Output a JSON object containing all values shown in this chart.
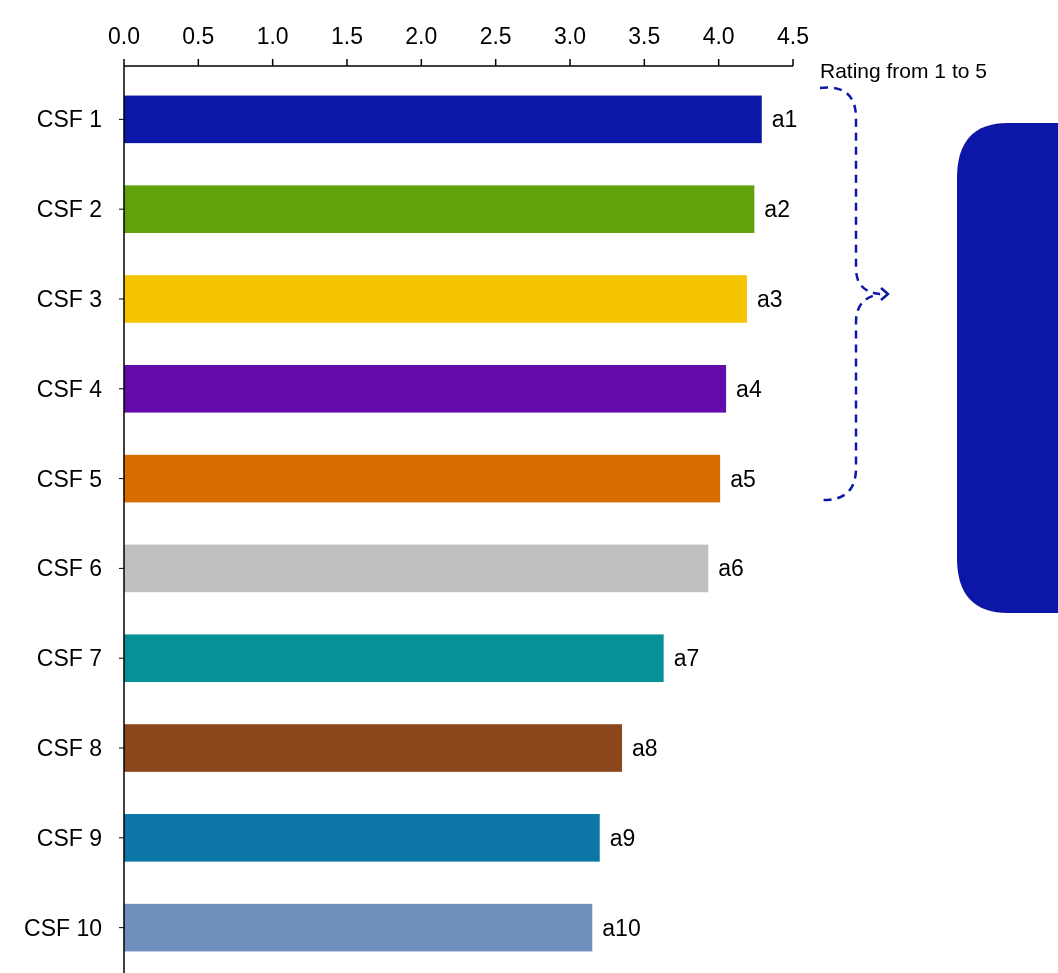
{
  "chart_data": {
    "type": "bar",
    "orientation": "horizontal",
    "categories": [
      "CSF 1",
      "CSF 2",
      "CSF 3",
      "CSF 4",
      "CSF 5",
      "CSF 6",
      "CSF 7",
      "CSF 8",
      "CSF 9",
      "CSF 10"
    ],
    "values": [
      4.29,
      4.24,
      4.19,
      4.05,
      4.01,
      3.93,
      3.63,
      3.35,
      3.2,
      3.15
    ],
    "colors": [
      "#0c17a8",
      "#5fa20c",
      "#f5c400",
      "#640cab",
      "#d96d00",
      "#bfbfbf",
      "#059196",
      "#8c461b",
      "#0c77a6",
      "#6f8fbc"
    ],
    "value_labels": [
      "a1",
      "a2",
      "a3",
      "a4",
      "a5",
      "a6",
      "a7",
      "a8",
      "a9",
      "a10"
    ],
    "xlim": [
      0,
      4.5
    ],
    "xticks": [
      {
        "value": 0,
        "label": "0.0"
      },
      {
        "value": 0.5,
        "label": "0.5"
      },
      {
        "value": 1,
        "label": "1.0"
      },
      {
        "value": 1.5,
        "label": "1.5"
      },
      {
        "value": 2,
        "label": "2.0"
      },
      {
        "value": 2.5,
        "label": "2.5"
      },
      {
        "value": 3,
        "label": "3.0"
      },
      {
        "value": 3.5,
        "label": "3.5"
      },
      {
        "value": 4,
        "label": "4.0"
      },
      {
        "value": 4.5,
        "label": "4.5"
      }
    ],
    "annotations": [
      "Rating from 1 to 5"
    ],
    "grid": false
  }
}
